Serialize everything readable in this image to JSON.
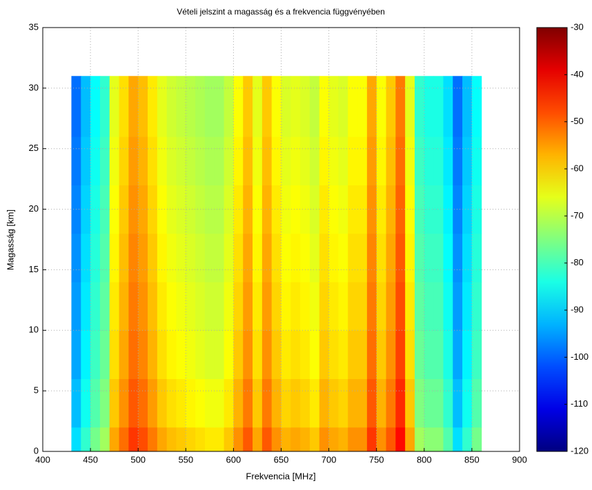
{
  "chart_data": {
    "type": "heatmap",
    "title": "Vételi jelszint a magasság és a frekvencia függvényében",
    "x_label": "Frekvencia [MHz]",
    "y_label": "Magasság [km]",
    "x_edges": [
      430,
      440,
      450,
      460,
      470,
      480,
      490,
      500,
      510,
      520,
      530,
      540,
      550,
      560,
      570,
      580,
      590,
      600,
      610,
      620,
      630,
      640,
      650,
      660,
      670,
      680,
      690,
      700,
      710,
      720,
      730,
      740,
      750,
      760,
      770,
      780,
      790,
      800,
      810,
      820,
      830,
      840,
      850,
      860
    ],
    "y_edges": [
      0,
      2,
      6,
      10,
      14,
      18,
      22,
      26,
      31
    ],
    "values": [
      [
        -89,
        -82,
        -76,
        -72,
        -56,
        -51,
        -46,
        -48,
        -52,
        -56,
        -58,
        -59,
        -60,
        -61,
        -62,
        -62,
        -59,
        -54,
        -49,
        -56,
        -49,
        -54,
        -57,
        -56,
        -57,
        -59,
        -54,
        -56,
        -57,
        -54,
        -54,
        -46,
        -54,
        -49,
        -42,
        -56,
        -72,
        -74,
        -74,
        -79,
        -89,
        -82,
        -76
      ],
      [
        -92,
        -85,
        -79,
        -75,
        -59,
        -54,
        -49,
        -51,
        -55,
        -59,
        -61,
        -62,
        -63,
        -64,
        -65,
        -65,
        -62,
        -57,
        -52,
        -59,
        -52,
        -57,
        -60,
        -59,
        -60,
        -62,
        -57,
        -59,
        -60,
        -57,
        -57,
        -49,
        -57,
        -52,
        -45,
        -59,
        -75,
        -77,
        -77,
        -82,
        -92,
        -85,
        -79
      ],
      [
        -94,
        -87,
        -81,
        -77,
        -61,
        -56,
        -51,
        -53,
        -57,
        -61,
        -63,
        -64,
        -65,
        -66,
        -67,
        -67,
        -64,
        -59,
        -54,
        -61,
        -54,
        -59,
        -62,
        -61,
        -62,
        -64,
        -59,
        -61,
        -62,
        -59,
        -59,
        -51,
        -59,
        -54,
        -47,
        -61,
        -77,
        -79,
        -79,
        -84,
        -94,
        -87,
        -81
      ],
      [
        -95,
        -88,
        -82,
        -78,
        -62,
        -57,
        -52,
        -54,
        -58,
        -62,
        -64,
        -65,
        -66,
        -67,
        -68,
        -68,
        -65,
        -60,
        -55,
        -62,
        -55,
        -60,
        -63,
        -62,
        -63,
        -65,
        -60,
        -62,
        -63,
        -60,
        -60,
        -52,
        -60,
        -55,
        -48,
        -62,
        -78,
        -80,
        -80,
        -85,
        -95,
        -88,
        -82
      ],
      [
        -96,
        -89,
        -83,
        -79,
        -63,
        -58,
        -53,
        -55,
        -59,
        -63,
        -65,
        -66,
        -67,
        -68,
        -69,
        -69,
        -66,
        -61,
        -56,
        -63,
        -56,
        -61,
        -64,
        -63,
        -64,
        -66,
        -61,
        -63,
        -64,
        -61,
        -61,
        -53,
        -61,
        -56,
        -49,
        -63,
        -79,
        -81,
        -81,
        -86,
        -96,
        -89,
        -83
      ],
      [
        -97,
        -90,
        -84,
        -80,
        -64,
        -59,
        -54,
        -56,
        -60,
        -64,
        -66,
        -67,
        -68,
        -69,
        -70,
        -70,
        -67,
        -62,
        -57,
        -64,
        -57,
        -62,
        -65,
        -64,
        -65,
        -67,
        -62,
        -64,
        -65,
        -62,
        -62,
        -54,
        -62,
        -57,
        -50,
        -64,
        -80,
        -82,
        -82,
        -87,
        -97,
        -90,
        -84
      ],
      [
        -98,
        -91,
        -85,
        -81,
        -65,
        -60,
        -55,
        -57,
        -61,
        -65,
        -67,
        -68,
        -69,
        -70,
        -71,
        -71,
        -68,
        -63,
        -58,
        -65,
        -58,
        -63,
        -66,
        -65,
        -66,
        -68,
        -63,
        -65,
        -66,
        -63,
        -63,
        -55,
        -63,
        -58,
        -51,
        -65,
        -81,
        -83,
        -83,
        -88,
        -98,
        -91,
        -85
      ],
      [
        -99,
        -92,
        -86,
        -82,
        -66,
        -61,
        -56,
        -58,
        -62,
        -66,
        -68,
        -69,
        -70,
        -71,
        -72,
        -72,
        -69,
        -64,
        -59,
        -66,
        -59,
        -64,
        -67,
        -66,
        -67,
        -69,
        -64,
        -66,
        -67,
        -64,
        -64,
        -56,
        -64,
        -59,
        -52,
        -66,
        -82,
        -84,
        -84,
        -89,
        -99,
        -92,
        -86
      ]
    ],
    "colormap": "jet",
    "clim": [
      -120,
      -30
    ],
    "cticks": [
      -120,
      -110,
      -100,
      -90,
      -80,
      -70,
      -60,
      -50,
      -40,
      -30
    ],
    "xlim": [
      400,
      900
    ],
    "xticks": [
      400,
      450,
      500,
      550,
      600,
      650,
      700,
      750,
      800,
      850,
      900
    ],
    "ylim": [
      0,
      35
    ],
    "yticks": [
      0,
      5,
      10,
      15,
      20,
      25,
      30,
      35
    ],
    "grid": true
  }
}
